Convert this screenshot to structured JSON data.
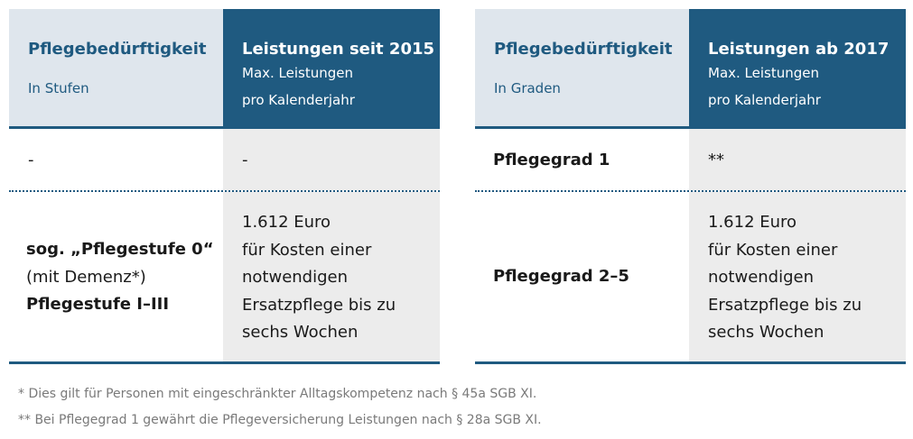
{
  "left_table": {
    "header_col1_title": "Pflegebedürftigkeit",
    "header_col1_sub": "In Stufen",
    "header_col2_title": "Leistungen seit 2015",
    "header_col2_sub1": "Max. Leistungen",
    "header_col2_sub2": "pro Kalenderjahr",
    "row1_col1": "-",
    "row1_col2": "-",
    "row2_col1_line1": "sog. „Pflegestufe 0“",
    "row2_col1_line2": "(mit Demenz*)",
    "row2_col1_line3": "Pflegestufe I–III",
    "row2_col2_lines": [
      "1.612 Euro",
      "für Kosten einer",
      "notwendigen",
      "Ersatzpflege bis zu",
      "sechs Wochen"
    ]
  },
  "right_table": {
    "header_col1_title": "Pflegebedürftigkeit",
    "header_col1_sub": "In Graden",
    "header_col2_title": "Leistungen ab 2017",
    "header_col2_sub1": "Max. Leistungen",
    "header_col2_sub2": "pro Kalenderjahr",
    "row1_col1": "Pflegegrad 1",
    "row1_col2": "**",
    "row2_col1": "Pflegegrad 2–5",
    "row2_col2_lines": [
      "1.612 Euro",
      "für Kosten einer",
      "notwendigen",
      "Ersatzpflege bis zu",
      "sechs Wochen"
    ]
  },
  "footnotes": [
    "* Dies gilt für Personen mit eingeschränkter Alltagskompetenz nach § 45a SGB XI.",
    "** Bei Pflegegrad 1 gewährt die Pflegeversicherung Leistungen nach § 28a SGB XI."
  ],
  "colors": {
    "accent": "#1f5a80",
    "header_light": "#dfe6ed",
    "cell_gray": "#ececec"
  }
}
